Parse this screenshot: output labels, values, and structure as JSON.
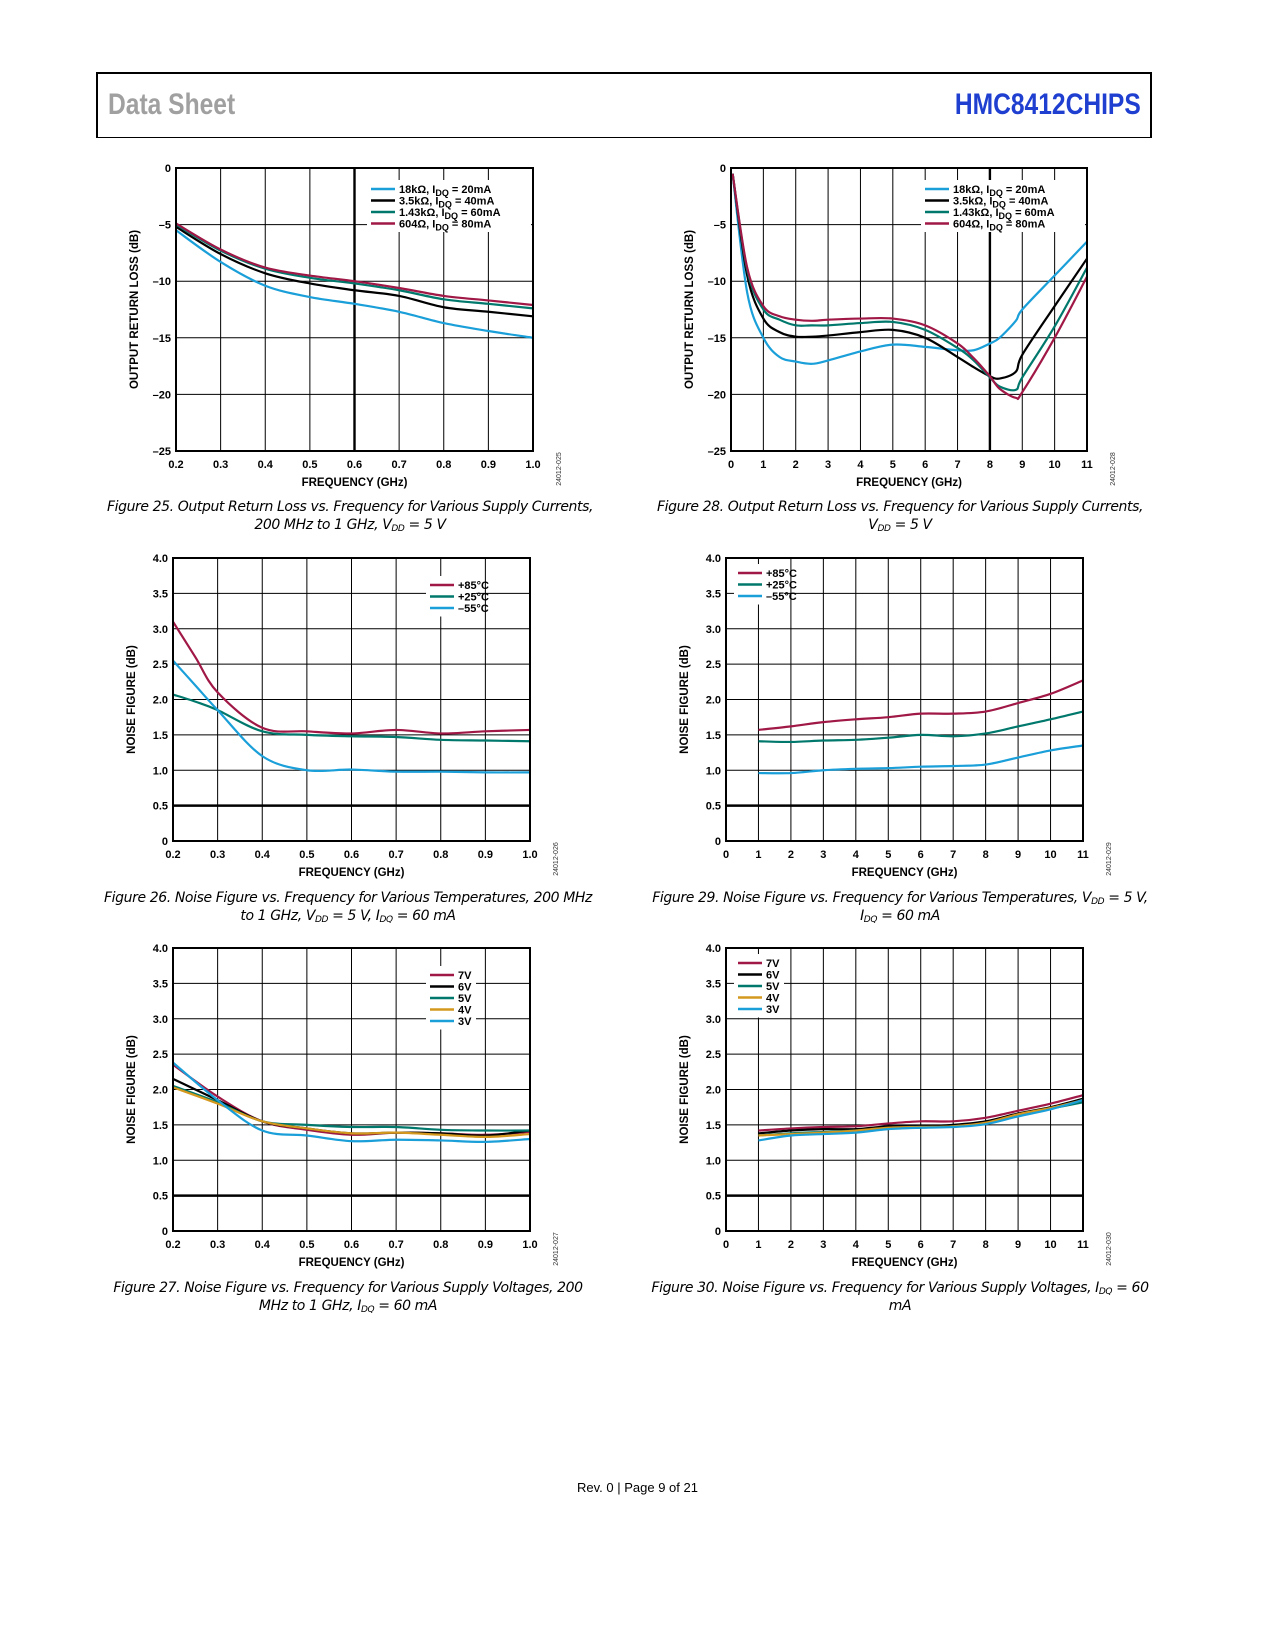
{
  "header": {
    "left": "Data Sheet",
    "right": "HMC8412CHIPS"
  },
  "footer": "Rev. 0 | Page 9 of 21",
  "colors": {
    "cyan": "#1a9fd9",
    "black": "#000000",
    "teal": "#00786c",
    "red": "#a01846",
    "orange": "#d4981e",
    "header_blue": "#1f3fd0"
  },
  "chart_data": [
    {
      "id": "fig25",
      "type": "line",
      "ylabel": "OUTPUT RETURN LOSS (dB)",
      "xlabel": "FREQUENCY (GHz)",
      "xlim": [
        0.2,
        1.0
      ],
      "ylim": [
        -25,
        0
      ],
      "xticks": [
        0.2,
        0.3,
        0.4,
        0.5,
        0.6,
        0.7,
        0.8,
        0.9,
        1.0
      ],
      "xtick_labels": [
        "0.2",
        "0.3",
        "0.4",
        "0.5",
        "0.6",
        "0.7",
        "0.8",
        "0.9",
        "1.0"
      ],
      "yticks": [
        0,
        -5,
        -10,
        -15,
        -20,
        -25
      ],
      "ytick_labels": [
        "0",
        "–5",
        "–10",
        "–15",
        "–20",
        "–25"
      ],
      "grid": true,
      "legend": "top-right",
      "watermark": "24012-025",
      "caption": [
        {
          "t": "Figure 25. Output Return Loss vs. Frequency for Various Supply Currents, 200 MHz to 1 GHz, V"
        },
        {
          "sub": "DD"
        },
        {
          "t": " = 5 V"
        }
      ],
      "x": [
        0.2,
        0.3,
        0.4,
        0.5,
        0.6,
        0.7,
        0.8,
        0.9,
        1.0
      ],
      "series": [
        {
          "name": {
            "pre": "18kΩ, I",
            "sub": "DQ",
            "post": " = 20mA"
          },
          "color": "#1a9fd9",
          "values": [
            -5.5,
            -8.3,
            -10.4,
            -11.4,
            -12.0,
            -12.7,
            -13.7,
            -14.4,
            -15.0
          ]
        },
        {
          "name": {
            "pre": "3.5kΩ, I",
            "sub": "DQ",
            "post": " = 40mA"
          },
          "color": "#000000",
          "values": [
            -5.2,
            -7.6,
            -9.3,
            -10.2,
            -10.8,
            -11.3,
            -12.3,
            -12.7,
            -13.1
          ]
        },
        {
          "name": {
            "pre": "1.43kΩ, I",
            "sub": "DQ",
            "post": " = 60mA"
          },
          "color": "#00786c",
          "values": [
            -5.0,
            -7.3,
            -8.9,
            -9.7,
            -10.2,
            -10.8,
            -11.6,
            -12.0,
            -12.4
          ]
        },
        {
          "name": {
            "pre": "604Ω, I",
            "sub": "DQ",
            "post": " = 80mA"
          },
          "color": "#a01846",
          "values": [
            -4.9,
            -7.2,
            -8.8,
            -9.5,
            -10.0,
            -10.6,
            -11.3,
            -11.7,
            -12.1
          ]
        }
      ]
    },
    {
      "id": "fig28",
      "type": "line",
      "ylabel": "OUTPUT RETURN LOSS (dB)",
      "xlabel": "FREQUENCY (GHz)",
      "xlim": [
        0,
        11
      ],
      "ylim": [
        -25,
        0
      ],
      "xticks": [
        0,
        1,
        2,
        3,
        4,
        5,
        6,
        7,
        8,
        9,
        10,
        11
      ],
      "xtick_labels": [
        "0",
        "1",
        "2",
        "3",
        "4",
        "5",
        "6",
        "7",
        "8",
        "9",
        "10",
        "11"
      ],
      "yticks": [
        0,
        -5,
        -10,
        -15,
        -20,
        -25
      ],
      "ytick_labels": [
        "0",
        "–5",
        "–10",
        "–15",
        "–20",
        "–25"
      ],
      "grid": true,
      "legend": "top-right",
      "watermark": "24012-028",
      "caption": [
        {
          "t": "Figure 28. Output Return Loss vs. Frequency for Various Supply Currents, V"
        },
        {
          "sub": "DD"
        },
        {
          "t": " = 5 V"
        }
      ],
      "x": [
        0.05,
        0.5,
        1,
        1.5,
        2,
        2.5,
        3,
        4,
        5,
        6,
        7,
        7.5,
        8,
        8.3,
        8.8,
        9,
        10,
        11
      ],
      "series": [
        {
          "name": {
            "pre": "18kΩ, I",
            "sub": "DQ",
            "post": " = 20mA"
          },
          "color": "#1a9fd9",
          "values": [
            -0.5,
            -11,
            -15,
            -16.7,
            -17.1,
            -17.3,
            -17,
            -16.2,
            -15.6,
            -15.8,
            -16.1,
            -16.1,
            -15.5,
            -15,
            -13.5,
            -12.5,
            -9.5,
            -6.5
          ]
        },
        {
          "name": {
            "pre": "3.5kΩ, I",
            "sub": "DQ",
            "post": " = 40mA"
          },
          "color": "#000000",
          "values": [
            -0.5,
            -9.5,
            -13.3,
            -14.5,
            -14.9,
            -14.9,
            -14.8,
            -14.5,
            -14.3,
            -15,
            -16.7,
            -17.6,
            -18.4,
            -18.6,
            -18.0,
            -16.5,
            -12.2,
            -8.0
          ]
        },
        {
          "name": {
            "pre": "1.43kΩ, I",
            "sub": "DQ",
            "post": " = 60mA"
          },
          "color": "#00786c",
          "values": [
            -0.5,
            -9,
            -12.5,
            -13.4,
            -13.9,
            -13.9,
            -13.9,
            -13.7,
            -13.6,
            -14.3,
            -15.9,
            -17.0,
            -18.5,
            -19.3,
            -19.6,
            -18.5,
            -14,
            -8.8
          ]
        },
        {
          "name": {
            "pre": "604Ω, I",
            "sub": "DQ",
            "post": " = 80mA"
          },
          "color": "#a01846",
          "values": [
            -0.5,
            -8.8,
            -12.2,
            -13.1,
            -13.4,
            -13.5,
            -13.4,
            -13.3,
            -13.3,
            -13.9,
            -15.5,
            -16.8,
            -18.4,
            -19.5,
            -20.3,
            -19.8,
            -15.0,
            -9.6
          ]
        }
      ]
    },
    {
      "id": "fig26",
      "type": "line",
      "ylabel": "NOISE FIGURE (dB)",
      "xlabel": "FREQUENCY (GHz)",
      "xlim": [
        0.2,
        1.0
      ],
      "ylim": [
        0,
        4.0
      ],
      "xticks": [
        0.2,
        0.3,
        0.4,
        0.5,
        0.6,
        0.7,
        0.8,
        0.9,
        1.0
      ],
      "xtick_labels": [
        "0.2",
        "0.3",
        "0.4",
        "0.5",
        "0.6",
        "0.7",
        "0.8",
        "0.9",
        "1.0"
      ],
      "yticks": [
        0,
        0.5,
        1.0,
        1.5,
        2.0,
        2.5,
        3.0,
        3.5,
        4.0
      ],
      "ytick_labels": [
        "0",
        "0.5",
        "1.0",
        "1.5",
        "2.0",
        "2.5",
        "3.0",
        "3.5",
        "4.0"
      ],
      "grid": true,
      "legend": "top-right",
      "watermark": "24012-026",
      "caption": [
        {
          "t": "Figure 26. Noise Figure vs. Frequency for Various Temperatures, 200 MHz to 1 GHz, V"
        },
        {
          "sub": "DD"
        },
        {
          "t": " = 5 V, I"
        },
        {
          "sub": "DQ"
        },
        {
          "t": " = 60 mA"
        }
      ],
      "x": [
        0.2,
        0.25,
        0.3,
        0.4,
        0.5,
        0.6,
        0.7,
        0.8,
        0.9,
        1.0
      ],
      "series": [
        {
          "name": {
            "pre": "+85°C"
          },
          "color": "#a01846",
          "values": [
            3.1,
            2.6,
            2.1,
            1.6,
            1.55,
            1.52,
            1.57,
            1.52,
            1.55,
            1.57
          ]
        },
        {
          "name": {
            "pre": "+25°C"
          },
          "color": "#00786c",
          "values": [
            2.07,
            1.97,
            1.85,
            1.55,
            1.5,
            1.48,
            1.47,
            1.43,
            1.42,
            1.41
          ]
        },
        {
          "name": {
            "pre": "–55°C"
          },
          "color": "#1a9fd9",
          "values": [
            2.55,
            2.2,
            1.85,
            1.2,
            1.0,
            1.01,
            0.98,
            0.98,
            0.97,
            0.97
          ]
        }
      ]
    },
    {
      "id": "fig29",
      "type": "line",
      "ylabel": "NOISE FIGURE (dB)",
      "xlabel": "FREQUENCY (GHz)",
      "xlim": [
        0,
        11
      ],
      "ylim": [
        0,
        4.0
      ],
      "xticks": [
        0,
        1,
        2,
        3,
        4,
        5,
        6,
        7,
        8,
        9,
        10,
        11
      ],
      "xtick_labels": [
        "0",
        "1",
        "2",
        "3",
        "4",
        "5",
        "6",
        "7",
        "8",
        "9",
        "10",
        "11"
      ],
      "yticks": [
        0,
        0.5,
        1.0,
        1.5,
        2.0,
        2.5,
        3.0,
        3.5,
        4.0
      ],
      "ytick_labels": [
        "0",
        "0.5",
        "1.0",
        "1.5",
        "2.0",
        "2.5",
        "3.0",
        "3.5",
        "4.0"
      ],
      "grid": true,
      "legend": "top-left",
      "watermark": "24012-029",
      "caption": [
        {
          "t": "Figure 29. Noise Figure vs. Frequency for Various Temperatures, V"
        },
        {
          "sub": "DD"
        },
        {
          "t": " = 5 V, I"
        },
        {
          "sub": "DQ"
        },
        {
          "t": " = 60 mA"
        }
      ],
      "x": [
        1,
        2,
        3,
        4,
        5,
        6,
        7,
        8,
        9,
        10,
        11
      ],
      "series": [
        {
          "name": {
            "pre": "+85°C"
          },
          "color": "#a01846",
          "values": [
            1.57,
            1.62,
            1.68,
            1.72,
            1.75,
            1.8,
            1.8,
            1.83,
            1.95,
            2.08,
            2.27
          ]
        },
        {
          "name": {
            "pre": "+25°C"
          },
          "color": "#00786c",
          "values": [
            1.41,
            1.4,
            1.42,
            1.43,
            1.46,
            1.5,
            1.48,
            1.52,
            1.62,
            1.72,
            1.83
          ]
        },
        {
          "name": {
            "pre": "–55°C"
          },
          "color": "#1a9fd9",
          "values": [
            0.96,
            0.96,
            1.0,
            1.02,
            1.03,
            1.05,
            1.06,
            1.08,
            1.18,
            1.28,
            1.35
          ]
        }
      ]
    },
    {
      "id": "fig27",
      "type": "line",
      "ylabel": "NOISE FIGURE (dB)",
      "xlabel": "FREQUENCY (GHz)",
      "xlim": [
        0.2,
        1.0
      ],
      "ylim": [
        0,
        4.0
      ],
      "xticks": [
        0.2,
        0.3,
        0.4,
        0.5,
        0.6,
        0.7,
        0.8,
        0.9,
        1.0
      ],
      "xtick_labels": [
        "0.2",
        "0.3",
        "0.4",
        "0.5",
        "0.6",
        "0.7",
        "0.8",
        "0.9",
        "1.0"
      ],
      "yticks": [
        0,
        0.5,
        1.0,
        1.5,
        2.0,
        2.5,
        3.0,
        3.5,
        4.0
      ],
      "ytick_labels": [
        "0",
        "0.5",
        "1.0",
        "1.5",
        "2.0",
        "2.5",
        "3.0",
        "3.5",
        "4.0"
      ],
      "grid": true,
      "legend": "top-right",
      "watermark": "24012-027",
      "caption": [
        {
          "t": "Figure 27. Noise Figure vs. Frequency for Various Supply Voltages, 200 MHz to 1 GHz, I"
        },
        {
          "sub": "DQ"
        },
        {
          "t": " = 60 mA"
        }
      ],
      "x": [
        0.2,
        0.3,
        0.4,
        0.5,
        0.6,
        0.7,
        0.8,
        0.9,
        1.0
      ],
      "series": [
        {
          "name": {
            "pre": "7V"
          },
          "color": "#a01846",
          "values": [
            2.35,
            1.9,
            1.55,
            1.43,
            1.36,
            1.39,
            1.38,
            1.36,
            1.4
          ]
        },
        {
          "name": {
            "pre": "6V"
          },
          "color": "#000000",
          "values": [
            2.15,
            1.85,
            1.55,
            1.45,
            1.38,
            1.39,
            1.38,
            1.35,
            1.42
          ]
        },
        {
          "name": {
            "pre": "5V"
          },
          "color": "#00786c",
          "values": [
            2.05,
            1.82,
            1.55,
            1.5,
            1.47,
            1.47,
            1.43,
            1.42,
            1.42
          ]
        },
        {
          "name": {
            "pre": "4V"
          },
          "color": "#d4981e",
          "values": [
            2.03,
            1.8,
            1.55,
            1.45,
            1.38,
            1.39,
            1.36,
            1.33,
            1.37
          ]
        },
        {
          "name": {
            "pre": "3V"
          },
          "color": "#1a9fd9",
          "values": [
            2.38,
            1.85,
            1.42,
            1.35,
            1.27,
            1.29,
            1.28,
            1.26,
            1.3
          ]
        }
      ]
    },
    {
      "id": "fig30",
      "type": "line",
      "ylabel": "NOISE FIGURE (dB)",
      "xlabel": "FREQUENCY (GHz)",
      "xlim": [
        0,
        11
      ],
      "ylim": [
        0,
        4.0
      ],
      "xticks": [
        0,
        1,
        2,
        3,
        4,
        5,
        6,
        7,
        8,
        9,
        10,
        11
      ],
      "xtick_labels": [
        "0",
        "1",
        "2",
        "3",
        "4",
        "5",
        "6",
        "7",
        "8",
        "9",
        "10",
        "11"
      ],
      "yticks": [
        0,
        0.5,
        1.0,
        1.5,
        2.0,
        2.5,
        3.0,
        3.5,
        4.0
      ],
      "ytick_labels": [
        "0",
        "0.5",
        "1.0",
        "1.5",
        "2.0",
        "2.5",
        "3.0",
        "3.5",
        "4.0"
      ],
      "grid": true,
      "legend": "top-left",
      "watermark": "24012-030",
      "caption": [
        {
          "t": "Figure 30. Noise Figure vs. Frequency for Various Supply Voltages, I"
        },
        {
          "sub": "DQ"
        },
        {
          "t": " = 60 mA"
        }
      ],
      "x": [
        1,
        2,
        3,
        4,
        5,
        6,
        7,
        8,
        9,
        10,
        11
      ],
      "series": [
        {
          "name": {
            "pre": "7V"
          },
          "color": "#a01846",
          "values": [
            1.42,
            1.45,
            1.47,
            1.48,
            1.52,
            1.55,
            1.55,
            1.6,
            1.7,
            1.8,
            1.92
          ]
        },
        {
          "name": {
            "pre": "6V"
          },
          "color": "#000000",
          "values": [
            1.38,
            1.42,
            1.44,
            1.44,
            1.48,
            1.48,
            1.5,
            1.55,
            1.66,
            1.75,
            1.87
          ]
        },
        {
          "name": {
            "pre": "5V"
          },
          "color": "#00786c",
          "values": [
            1.35,
            1.38,
            1.4,
            1.42,
            1.45,
            1.46,
            1.48,
            1.52,
            1.64,
            1.73,
            1.82
          ]
        },
        {
          "name": {
            "pre": "4V"
          },
          "color": "#d4981e",
          "values": [
            1.35,
            1.37,
            1.39,
            1.42,
            1.46,
            1.47,
            1.48,
            1.53,
            1.65,
            1.74,
            1.85
          ]
        },
        {
          "name": {
            "pre": "3V"
          },
          "color": "#1a9fd9",
          "values": [
            1.28,
            1.35,
            1.37,
            1.39,
            1.44,
            1.46,
            1.47,
            1.51,
            1.62,
            1.72,
            1.85
          ]
        }
      ]
    }
  ]
}
